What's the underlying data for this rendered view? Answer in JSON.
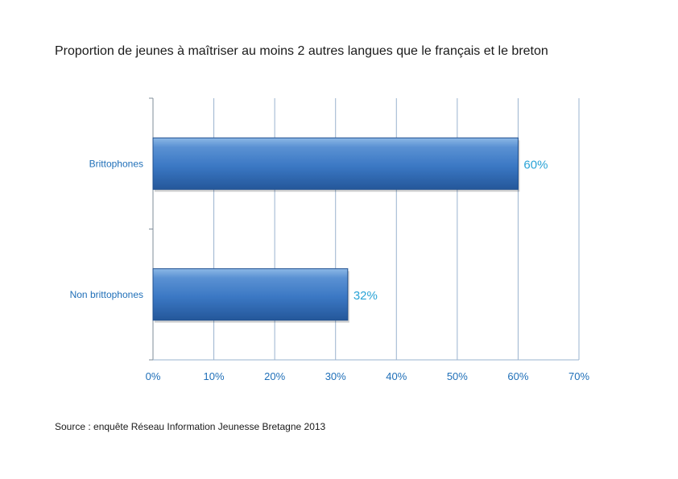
{
  "title": "Proportion de jeunes à maîtriser au moins 2 autres langues que le français et le breton",
  "source": "Source : enquête Réseau Information Jeunesse Bretagne 2013",
  "colors": {
    "bar_light": "#6fa3dc",
    "bar_main": "#3b78c4",
    "bar_dark": "#1f4f8e",
    "grid": "#9ab3cf",
    "axis_text": "#1f6fb8",
    "data_label": "#29a3d6"
  },
  "chart_data": {
    "type": "bar",
    "orientation": "horizontal",
    "categories": [
      "Brittophones",
      "Non brittophones"
    ],
    "values": [
      60,
      32
    ],
    "data_labels": [
      "60%",
      "32%"
    ],
    "xlim": [
      0,
      70
    ],
    "xticks": [
      0,
      10,
      20,
      30,
      40,
      50,
      60,
      70
    ],
    "xtick_labels": [
      "0%",
      "10%",
      "20%",
      "30%",
      "40%",
      "50%",
      "60%",
      "70%"
    ],
    "grid": true,
    "legend": "none"
  }
}
